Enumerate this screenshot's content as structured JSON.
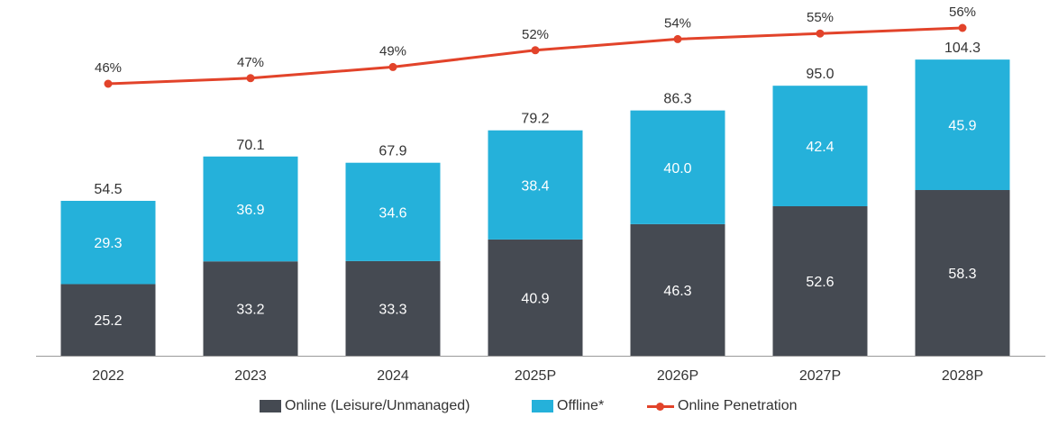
{
  "chart_data": {
    "type": "bar",
    "stacked": true,
    "categories": [
      "2022",
      "2023",
      "2024",
      "2025P",
      "2026P",
      "2027P",
      "2028P"
    ],
    "series": [
      {
        "name": "Online (Leisure/Unmanaged)",
        "values": [
          25.2,
          33.2,
          33.3,
          40.9,
          46.3,
          52.6,
          58.3
        ],
        "color": "#454a52"
      },
      {
        "name": "Offline*",
        "values": [
          29.3,
          36.9,
          34.6,
          38.4,
          40.0,
          42.4,
          45.9
        ],
        "color": "#25b1da"
      }
    ],
    "totals": [
      "54.5",
      "70.1",
      "67.9",
      "79.2",
      "86.3",
      "95.0",
      "104.3"
    ],
    "line_series": {
      "name": "Online Penetration",
      "values": [
        46,
        47,
        49,
        52,
        54,
        55,
        56
      ],
      "labels": [
        "46%",
        "47%",
        "49%",
        "52%",
        "54%",
        "55%",
        "56%"
      ],
      "color": "#e2432a"
    },
    "legend": [
      "Online (Leisure/Unmanaged)",
      "Offline*",
      "Online Penetration"
    ],
    "legend_position": "bottom"
  }
}
